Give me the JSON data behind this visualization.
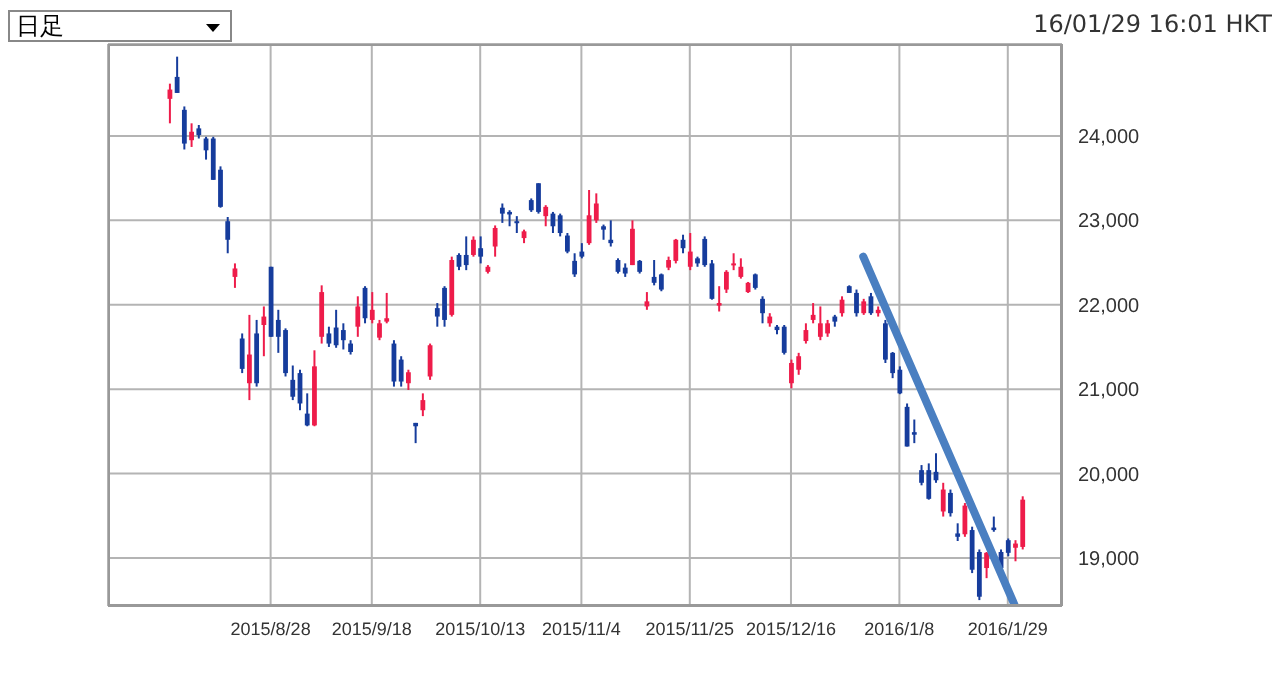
{
  "chart_data": {
    "type": "candlestick",
    "categories": [
      null,
      null,
      null,
      null,
      null,
      null,
      null,
      null,
      null,
      null,
      null,
      null,
      null,
      null,
      null,
      null,
      null,
      null,
      null,
      null,
      null,
      null,
      "2015/8/28",
      null,
      null,
      null,
      null,
      null,
      null,
      null,
      null,
      null,
      null,
      null,
      null,
      null,
      "2015/9/18",
      null,
      null,
      null,
      null,
      null,
      null,
      null,
      null,
      null,
      null,
      null,
      null,
      null,
      null,
      "2015/10/13",
      null,
      null,
      null,
      null,
      null,
      null,
      null,
      null,
      null,
      null,
      null,
      null,
      null,
      "2015/11/4",
      null,
      null,
      null,
      null,
      null,
      null,
      null,
      null,
      null,
      null,
      null,
      null,
      null,
      null,
      "2015/11/25",
      null,
      null,
      null,
      null,
      null,
      null,
      null,
      null,
      null,
      null,
      null,
      null,
      null,
      "2015/12/16",
      null,
      null,
      null,
      null,
      null,
      null,
      null,
      null,
      null,
      null,
      null,
      null,
      null,
      null,
      "2016/1/8",
      null,
      null,
      null,
      null,
      null,
      null,
      null,
      null,
      null,
      null,
      null,
      null,
      null,
      null,
      "2016/1/29",
      null,
      null,
      null,
      null,
      null,
      null,
      null
    ],
    "ohlc": [
      null,
      null,
      null,
      null,
      null,
      null,
      null,
      null,
      [
        24440,
        24620,
        24150,
        24550
      ],
      [
        24700,
        24940,
        24510,
        24510
      ],
      [
        24310,
        24350,
        23840,
        23910
      ],
      [
        23950,
        24150,
        23870,
        24050
      ],
      [
        24090,
        24130,
        23970,
        24010
      ],
      [
        23970,
        23990,
        23720,
        23830
      ],
      [
        23970,
        23990,
        23480,
        23480
      ],
      [
        23600,
        23640,
        23150,
        23160
      ],
      [
        22990,
        23040,
        22610,
        22770
      ],
      [
        22330,
        22490,
        22200,
        22430
      ],
      [
        21600,
        21660,
        21190,
        21240
      ],
      [
        21070,
        21880,
        20870,
        21410
      ],
      [
        21660,
        21820,
        21030,
        21070
      ],
      [
        21760,
        21980,
        21390,
        21860
      ],
      [
        22450,
        22450,
        21620,
        21620
      ],
      [
        21820,
        21940,
        21430,
        21620
      ],
      [
        21700,
        21720,
        21150,
        21190
      ],
      [
        21110,
        21280,
        20870,
        20910
      ],
      [
        21190,
        21230,
        20750,
        20830
      ],
      [
        20710,
        20950,
        20560,
        20570
      ],
      [
        20570,
        21460,
        20560,
        21270
      ],
      [
        21620,
        22230,
        21540,
        22150
      ],
      [
        21660,
        21740,
        21500,
        21540
      ],
      [
        21730,
        21940,
        21490,
        21520
      ],
      [
        21700,
        21780,
        21470,
        21580
      ],
      [
        21540,
        21580,
        21410,
        21440
      ],
      [
        21740,
        22100,
        21620,
        21980
      ],
      [
        22200,
        22220,
        21780,
        21840
      ],
      [
        21820,
        22150,
        21780,
        21940
      ],
      [
        21610,
        21820,
        21580,
        21780
      ],
      [
        21800,
        22140,
        21780,
        21840
      ],
      [
        21540,
        21580,
        21030,
        21090
      ],
      [
        21350,
        21390,
        21030,
        21090
      ],
      [
        21070,
        21230,
        20990,
        21200
      ],
      [
        20600,
        20600,
        20360,
        20560
      ],
      [
        20750,
        20950,
        20680,
        20870
      ],
      [
        21150,
        21540,
        21110,
        21520
      ],
      [
        21960,
        22020,
        21740,
        21860
      ],
      [
        22200,
        22220,
        21740,
        21820
      ],
      [
        21880,
        22570,
        21860,
        22530
      ],
      [
        22590,
        22610,
        22410,
        22450
      ],
      [
        22590,
        22810,
        22410,
        22470
      ],
      [
        22590,
        22810,
        22570,
        22770
      ],
      [
        22670,
        22810,
        22490,
        22570
      ],
      [
        22390,
        22470,
        22370,
        22450
      ],
      [
        22690,
        22940,
        22570,
        22910
      ],
      [
        23150,
        23200,
        22970,
        23080
      ],
      [
        23100,
        23120,
        22930,
        23070
      ],
      [
        22990,
        23050,
        22850,
        22980
      ],
      [
        22790,
        22890,
        22730,
        22870
      ],
      [
        23240,
        23260,
        23100,
        23120
      ],
      [
        23440,
        23440,
        23080,
        23100
      ],
      [
        23050,
        23180,
        22930,
        23160
      ],
      [
        23080,
        23100,
        22850,
        22930
      ],
      [
        23060,
        23080,
        22810,
        22850
      ],
      [
        22820,
        22850,
        22610,
        22630
      ],
      [
        22520,
        22610,
        22330,
        22360
      ],
      [
        22630,
        22730,
        22550,
        22570
      ],
      [
        22730,
        23360,
        22710,
        23060
      ],
      [
        23000,
        23320,
        22970,
        23200
      ],
      [
        22930,
        22950,
        22770,
        22890
      ],
      [
        22770,
        23000,
        22690,
        22730
      ],
      [
        22530,
        22550,
        22370,
        22390
      ],
      [
        22440,
        22490,
        22330,
        22370
      ],
      [
        22470,
        23000,
        22470,
        22900
      ],
      [
        22520,
        22530,
        22370,
        22390
      ],
      [
        21980,
        22150,
        21940,
        22040
      ],
      [
        22330,
        22530,
        22230,
        22260
      ],
      [
        22360,
        22370,
        22160,
        22180
      ],
      [
        22440,
        22570,
        22410,
        22530
      ],
      [
        22520,
        22780,
        22490,
        22770
      ],
      [
        22770,
        22830,
        22610,
        22670
      ],
      [
        22450,
        22850,
        22410,
        22630
      ],
      [
        22550,
        22570,
        22450,
        22490
      ],
      [
        22780,
        22810,
        22450,
        22470
      ],
      [
        22490,
        22530,
        22060,
        22070
      ],
      [
        21990,
        22220,
        21920,
        22020
      ],
      [
        22180,
        22410,
        22140,
        22390
      ],
      [
        22470,
        22610,
        22410,
        22490
      ],
      [
        22330,
        22550,
        22310,
        22450
      ],
      [
        22150,
        22270,
        22140,
        22260
      ],
      [
        22360,
        22370,
        22180,
        22200
      ],
      [
        22070,
        22100,
        21780,
        21900
      ],
      [
        21780,
        21900,
        21740,
        21860
      ],
      [
        21740,
        21760,
        21650,
        21700
      ],
      [
        21740,
        21760,
        21410,
        21430
      ],
      [
        21070,
        21350,
        21010,
        21310
      ],
      [
        21230,
        21430,
        21170,
        21390
      ],
      [
        21570,
        21780,
        21540,
        21700
      ],
      [
        21820,
        22020,
        21780,
        21880
      ],
      [
        21620,
        21980,
        21580,
        21780
      ],
      [
        21660,
        21820,
        21620,
        21780
      ],
      [
        21860,
        21880,
        21740,
        21800
      ],
      [
        21900,
        22100,
        21860,
        22060
      ],
      [
        22220,
        22230,
        22140,
        22140
      ],
      [
        22140,
        22180,
        21860,
        21900
      ],
      [
        21900,
        22070,
        21880,
        22040
      ],
      [
        22100,
        22140,
        21880,
        21900
      ],
      [
        21900,
        21980,
        21860,
        21940
      ],
      [
        21780,
        21820,
        21310,
        21350
      ],
      [
        21430,
        21440,
        21130,
        21190
      ],
      [
        21230,
        21270,
        20940,
        20950
      ],
      [
        20790,
        20830,
        20320,
        20320
      ],
      [
        20490,
        20640,
        20360,
        20460
      ],
      [
        20040,
        20100,
        19860,
        19890
      ],
      [
        20040,
        20120,
        19690,
        19700
      ],
      [
        20020,
        20240,
        19890,
        19920
      ],
      [
        19550,
        19890,
        19490,
        19810
      ],
      [
        19770,
        19810,
        19490,
        19530
      ],
      [
        19290,
        19410,
        19200,
        19250
      ],
      [
        19280,
        19650,
        19250,
        19620
      ],
      [
        19330,
        19370,
        18820,
        18860
      ],
      [
        19070,
        19100,
        18500,
        18540
      ],
      [
        18880,
        19070,
        18760,
        19060
      ],
      [
        19360,
        19490,
        19310,
        19330
      ],
      [
        19070,
        19100,
        18820,
        18880
      ],
      [
        19210,
        19230,
        19020,
        19060
      ],
      [
        19120,
        19210,
        18960,
        19170
      ],
      [
        19130,
        19730,
        19100,
        19690
      ],
      null,
      null,
      null,
      null,
      null
    ],
    "colors": [
      null,
      null,
      null,
      null,
      null,
      null,
      null,
      null,
      "#ee1c4a",
      "#163c9c",
      "#163c9c",
      "#ee1c4a",
      "#163c9c",
      "#163c9c",
      "#163c9c",
      "#163c9c",
      "#163c9c",
      "#ee1c4a",
      "#163c9c",
      "#ee1c4a",
      "#163c9c",
      "#ee1c4a",
      "#163c9c",
      "#163c9c",
      "#163c9c",
      "#163c9c",
      "#163c9c",
      "#163c9c",
      "#ee1c4a",
      "#ee1c4a",
      "#163c9c",
      "#163c9c",
      "#163c9c",
      "#163c9c",
      "#ee1c4a",
      "#163c9c",
      "#ee1c4a",
      "#ee1c4a",
      "#ee1c4a",
      "#163c9c",
      "#163c9c",
      "#ee1c4a",
      "#163c9c",
      "#ee1c4a",
      "#ee1c4a",
      "#163c9c",
      "#163c9c",
      "#ee1c4a",
      "#163c9c",
      "#163c9c",
      "#ee1c4a",
      "#163c9c",
      "#ee1c4a",
      "#ee1c4a",
      "#163c9c",
      "#163c9c",
      "#163c9c",
      "#ee1c4a",
      "#163c9c",
      "#163c9c",
      "#ee1c4a",
      "#163c9c",
      "#163c9c",
      "#163c9c",
      "#163c9c",
      "#163c9c",
      "#ee1c4a",
      "#ee1c4a",
      "#163c9c",
      "#163c9c",
      "#163c9c",
      "#163c9c",
      "#ee1c4a",
      "#163c9c",
      "#ee1c4a",
      "#163c9c",
      "#163c9c",
      "#ee1c4a",
      "#ee1c4a",
      "#163c9c",
      "#ee1c4a",
      "#163c9c",
      "#163c9c",
      "#163c9c",
      "#ee1c4a",
      "#ee1c4a",
      "#ee1c4a",
      "#ee1c4a",
      "#ee1c4a",
      "#163c9c",
      "#163c9c",
      "#ee1c4a",
      "#163c9c",
      "#163c9c",
      "#ee1c4a",
      "#ee1c4a",
      "#ee1c4a",
      "#ee1c4a",
      "#ee1c4a",
      "#ee1c4a",
      "#163c9c",
      "#ee1c4a",
      "#163c9c",
      "#163c9c",
      "#ee1c4a",
      "#163c9c",
      "#ee1c4a",
      "#163c9c",
      "#163c9c",
      "#163c9c",
      "#163c9c",
      "#163c9c",
      "#163c9c",
      "#163c9c",
      "#163c9c",
      "#ee1c4a",
      "#163c9c",
      "#163c9c",
      "#ee1c4a",
      "#163c9c",
      "#163c9c",
      "#ee1c4a",
      "#163c9c",
      "#163c9c",
      "#163c9c",
      "#ee1c4a",
      "#ee1c4a",
      null,
      null,
      null,
      null,
      null
    ],
    "series": [
      {
        "type": "line",
        "color": "#4a7fc1",
        "values": [
          null,
          null,
          null,
          null,
          null,
          null,
          null,
          null,
          null,
          null,
          null,
          null,
          null,
          null,
          null,
          null,
          null,
          null,
          null,
          null,
          null,
          null,
          null,
          null,
          null,
          null,
          null,
          null,
          null,
          null,
          null,
          null,
          null,
          null,
          null,
          null,
          null,
          null,
          null,
          null,
          null,
          null,
          null,
          null,
          null,
          null,
          null,
          null,
          null,
          null,
          null,
          null,
          null,
          null,
          null,
          null,
          null,
          null,
          null,
          null,
          null,
          null,
          null,
          null,
          null,
          null,
          null,
          null,
          null,
          null,
          null,
          null,
          null,
          null,
          null,
          null,
          null,
          null,
          null,
          null,
          null,
          null,
          null,
          null,
          null,
          null,
          null,
          null,
          null,
          null,
          null,
          null,
          null,
          null,
          null,
          null,
          null,
          null,
          null,
          null,
          null,
          null,
          null,
          null,
          22570,
          null,
          null,
          null,
          null,
          null,
          null,
          null,
          null,
          null,
          null,
          null,
          null,
          null,
          null,
          null,
          null,
          null,
          null,
          null,
          null,
          18430,
          null,
          null,
          null,
          null,
          null,
          null
        ]
      }
    ],
    "ylim": [
      18430,
      25090
    ],
    "yticks": [
      {
        "value": 19000,
        "label": "19,000"
      },
      {
        "value": 20000,
        "label": "20,000"
      },
      {
        "value": 21000,
        "label": "21,000"
      },
      {
        "value": 22000,
        "label": "22,000"
      },
      {
        "value": 23000,
        "label": "23,000"
      },
      {
        "value": 24000,
        "label": "24,000"
      }
    ],
    "grid": true,
    "annotations": [
      "日足",
      "16/01/29 16:01 HKT"
    ]
  }
}
